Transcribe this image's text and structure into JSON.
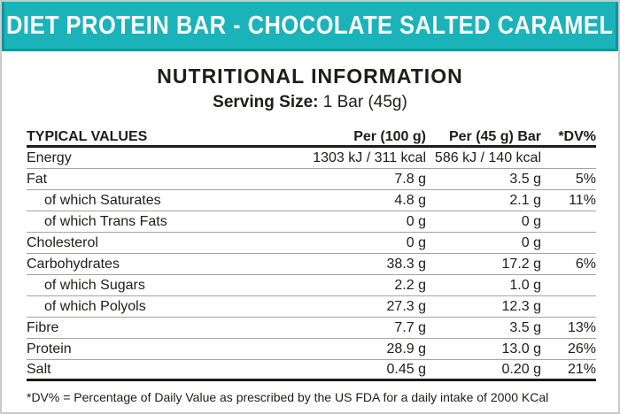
{
  "theme": {
    "accent": "#1bb3ba",
    "accent_dark": "#0e96a0",
    "text": "#1d1d1b",
    "line_gray": "#a3a3a3",
    "border_gray": "#c7cbcd",
    "heavy_line": "#1d1d1b"
  },
  "header": {
    "title": "DIET PROTEIN BAR - CHOCOLATE SALTED CARAMEL"
  },
  "section": {
    "title": "NUTRITIONAL INFORMATION",
    "serving_label": "Serving Size:",
    "serving_value": "1 Bar (45g)"
  },
  "table": {
    "columns": [
      "TYPICAL VALUES",
      "Per (100 g)",
      "Per (45 g) Bar",
      "*DV%"
    ],
    "rows": [
      {
        "label": "Energy",
        "per100": "1303 kJ / 311 kcal",
        "per45": "586 kJ / 140 kcal",
        "dv": ""
      },
      {
        "label": "Fat",
        "per100": "7.8 g",
        "per45": "3.5 g",
        "dv": "5%"
      },
      {
        "label": "of which Saturates",
        "per100": "4.8 g",
        "per45": "2.1 g",
        "dv": "11%"
      },
      {
        "label": "of which Trans Fats",
        "per100": "0 g",
        "per45": "0 g",
        "dv": ""
      },
      {
        "label": "Cholesterol",
        "per100": "0 g",
        "per45": "0 g",
        "dv": ""
      },
      {
        "label": "Carbohydrates",
        "per100": "38.3 g",
        "per45": "17.2 g",
        "dv": "6%"
      },
      {
        "label": "of which Sugars",
        "per100": "2.2 g",
        "per45": "1.0 g",
        "dv": ""
      },
      {
        "label": "of which Polyols",
        "per100": "27.3 g",
        "per45": "12.3 g",
        "dv": ""
      },
      {
        "label": "Fibre",
        "per100": "7.7 g",
        "per45": "3.5 g",
        "dv": "13%"
      },
      {
        "label": "Protein",
        "per100": "28.9 g",
        "per45": "13.0 g",
        "dv": "26%"
      },
      {
        "label": "Salt",
        "per100": "0.45 g",
        "per45": "0.20 g",
        "dv": "21%"
      }
    ]
  },
  "footnote": "*DV% = Percentage of Daily Value as prescribed by the US FDA for a daily intake of 2000 KCal"
}
